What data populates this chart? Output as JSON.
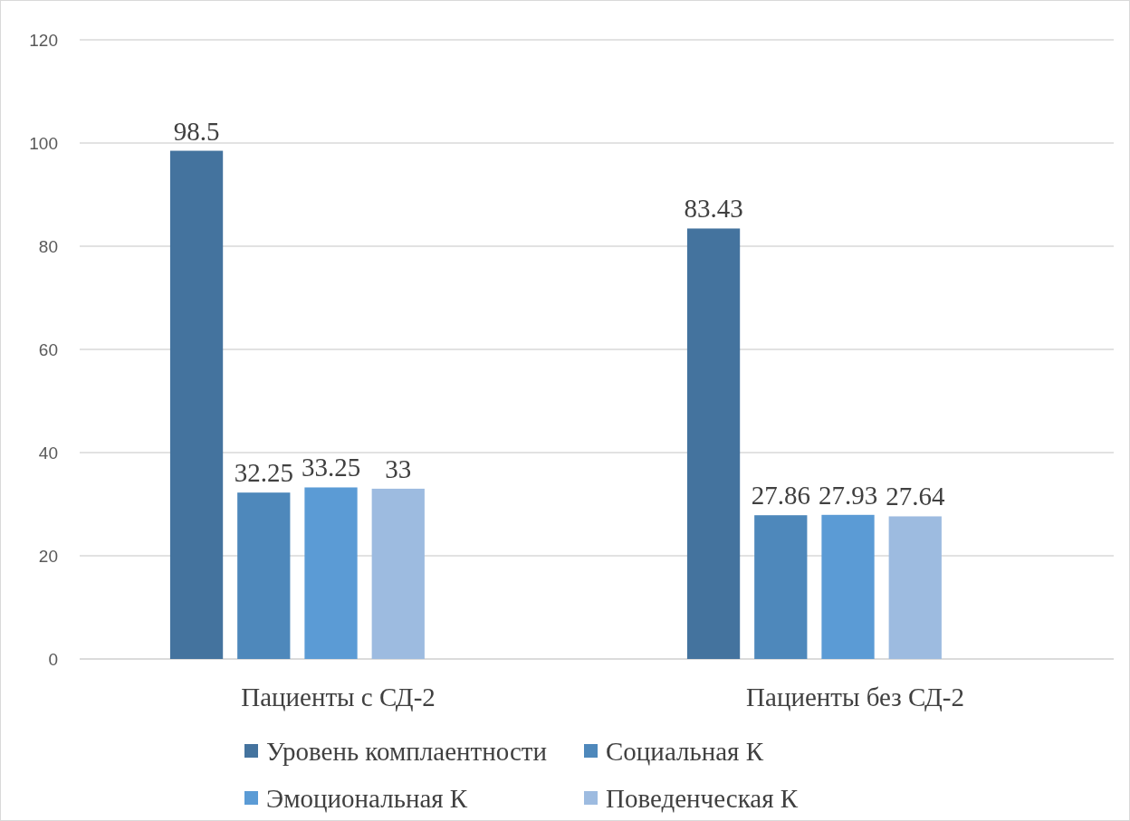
{
  "chart_data": {
    "type": "bar",
    "categories": [
      "Пациенты с СД-2",
      "Пациенты без СД-2"
    ],
    "series": [
      {
        "name": "Уровень комплаентности",
        "color": "#44739e",
        "values": [
          98.5,
          83.43
        ]
      },
      {
        "name": "Социальная К",
        "color": "#4e88bb",
        "values": [
          32.25,
          27.86
        ]
      },
      {
        "name": "Эмоциональная К",
        "color": "#5b9bd5",
        "values": [
          33.25,
          27.93
        ]
      },
      {
        "name": "Поведенческая К",
        "color": "#9dbbe0",
        "values": [
          33,
          27.64
        ]
      }
    ],
    "ylim": [
      0,
      120
    ],
    "yticks": [
      0,
      20,
      40,
      60,
      80,
      100,
      120
    ],
    "grid": "y",
    "legend": "bottom",
    "data_labels": true
  }
}
